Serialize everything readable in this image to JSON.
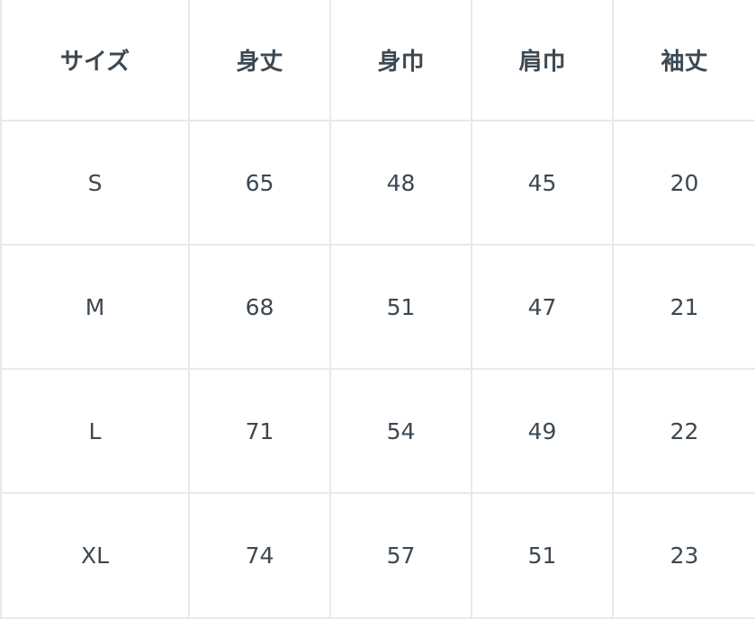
{
  "table": {
    "headers": [
      "サイズ",
      "身丈",
      "身巾",
      "肩巾",
      "袖丈"
    ],
    "rows": [
      [
        "S",
        "65",
        "48",
        "45",
        "20"
      ],
      [
        "M",
        "68",
        "51",
        "47",
        "21"
      ],
      [
        "L",
        "71",
        "54",
        "49",
        "22"
      ],
      [
        "XL",
        "74",
        "57",
        "51",
        "23"
      ]
    ]
  }
}
